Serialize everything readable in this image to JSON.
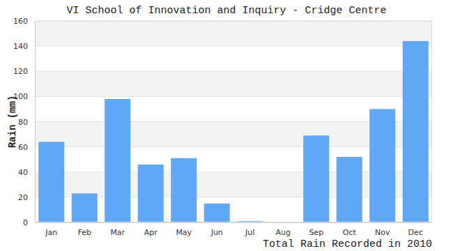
{
  "chart_data": {
    "type": "bar",
    "title": "VI School of Innovation and Inquiry - Cridge Centre",
    "x_label": "Total Rain Recorded in 2010",
    "y_label": "Rain (mm)",
    "categories": [
      "Jan",
      "Feb",
      "Mar",
      "Apr",
      "May",
      "Jun",
      "Jul",
      "Aug",
      "Sep",
      "Oct",
      "Nov",
      "Dec"
    ],
    "values": [
      64,
      23,
      98,
      46,
      51,
      15,
      1,
      0,
      69,
      52,
      90,
      144
    ],
    "color": "#60a8f5",
    "ylim": [
      0,
      160
    ],
    "yticks": [
      0,
      20,
      40,
      60,
      80,
      100,
      120,
      140,
      160
    ],
    "grid": true
  }
}
